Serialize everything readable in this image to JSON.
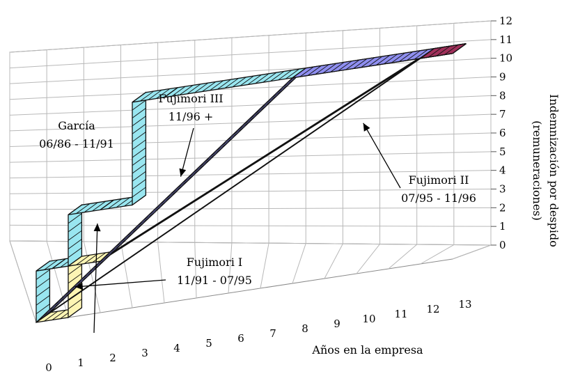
{
  "chart_data": {
    "type": "line",
    "style": "3d-ribbon",
    "title": "",
    "xlabel": "Años en la empresa",
    "ylabel_line1": "Indemnización por despido",
    "ylabel_line2": "(remuneraciones)",
    "x_ticks": [
      "0",
      "1",
      "2",
      "3",
      "4",
      "5",
      "6",
      "7",
      "8",
      "9",
      "10",
      "11",
      "12",
      "13"
    ],
    "y_ticks": [
      "0",
      "1",
      "2",
      "3",
      "4",
      "5",
      "6",
      "7",
      "8",
      "9",
      "10",
      "11",
      "12"
    ],
    "xlim": [
      0,
      13
    ],
    "ylim": [
      0,
      12
    ],
    "grid": true,
    "series": [
      {
        "name": "García 06/86 - 11/91",
        "color": "#99e6f0",
        "points": [
          [
            0,
            0
          ],
          [
            0,
            3
          ],
          [
            0.5,
            3
          ],
          [
            1,
            3
          ],
          [
            1,
            6
          ],
          [
            2,
            6
          ],
          [
            3,
            6
          ],
          [
            3,
            12
          ],
          [
            4,
            12
          ],
          [
            13,
            12
          ]
        ]
      },
      {
        "name": "Fujimori I 11/91 - 07/95",
        "color": "#fdf5b4",
        "points": [
          [
            0,
            0
          ],
          [
            1,
            0
          ],
          [
            1,
            3
          ],
          [
            2,
            3
          ],
          [
            12,
            12
          ],
          [
            13,
            12
          ]
        ]
      },
      {
        "name": "Fujimori III 11/96 +",
        "color": "#8f8ff0",
        "points": [
          [
            0,
            0
          ],
          [
            8,
            12
          ],
          [
            13,
            12
          ]
        ]
      },
      {
        "name": "Fujimori II 07/95 - 11/96",
        "color": "#a0305a",
        "points": [
          [
            0,
            0
          ],
          [
            12,
            12
          ],
          [
            13,
            12
          ]
        ]
      }
    ],
    "annotations": [
      {
        "line1": "García",
        "line2": "06/86 - 11/91",
        "target": [
          1.7,
          5
        ]
      },
      {
        "line1": "Fujimori III",
        "line2": "11/96 +",
        "target": [
          4.3,
          7
        ]
      },
      {
        "line1": "Fujimori II",
        "line2": "07/95 - 11/96",
        "target": [
          10,
          8.5
        ]
      },
      {
        "line1": "Fujimori I",
        "line2": "11/91 - 07/95",
        "target": [
          1,
          1.5
        ]
      }
    ]
  }
}
